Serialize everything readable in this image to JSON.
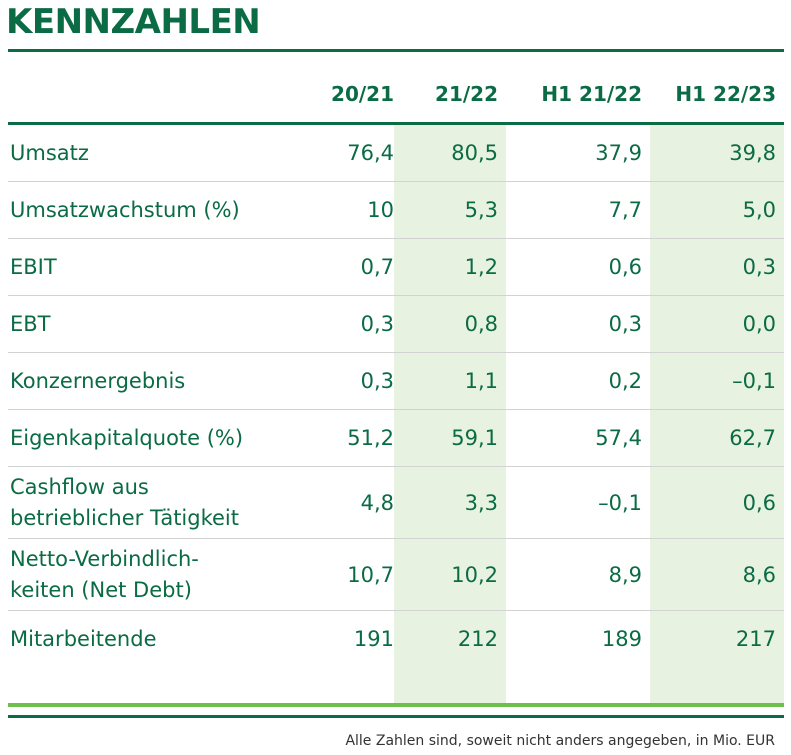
{
  "title": "KENNZAHLEN",
  "headers": [
    "",
    "20/21",
    "21/22",
    "H1 21/22",
    "H1 22/23"
  ],
  "rows": [
    {
      "label": "Umsatz",
      "values": [
        "76,4",
        "80,5",
        "37,9",
        "39,8"
      ]
    },
    {
      "label": "Umsatzwachstum (%)",
      "values": [
        "10",
        "5,3",
        "7,7",
        "5,0"
      ]
    },
    {
      "label": "EBIT",
      "values": [
        "0,7",
        "1,2",
        "0,6",
        "0,3"
      ]
    },
    {
      "label": "EBT",
      "values": [
        "0,3",
        "0,8",
        "0,3",
        "0,0"
      ]
    },
    {
      "label": "Konzernergebnis",
      "values": [
        "0,3",
        "1,1",
        "0,2",
        "–0,1"
      ]
    },
    {
      "label": "Eigenkapitalquote (%)",
      "values": [
        "51,2",
        "59,1",
        "57,4",
        "62,7"
      ]
    },
    {
      "label": "Cashflow aus\nbetrieblicher Tätigkeit",
      "values": [
        "4,8",
        "3,3",
        "–0,1",
        "0,6"
      ]
    },
    {
      "label": "Netto-Verbindlich-\nkeiten (Net Debt)",
      "values": [
        "10,7",
        "10,2",
        "8,9",
        "8,6"
      ]
    },
    {
      "label": "Mitarbeitende",
      "values": [
        "191",
        "212",
        "189",
        "217"
      ]
    }
  ],
  "footnote": "Alle Zahlen sind, soweit nicht anders angegeben, in Mio. EUR",
  "colors": {
    "brand_green": "#0a6b45",
    "highlight_bg": "#e8f2e0",
    "accent_line": "#6cbf4a"
  }
}
